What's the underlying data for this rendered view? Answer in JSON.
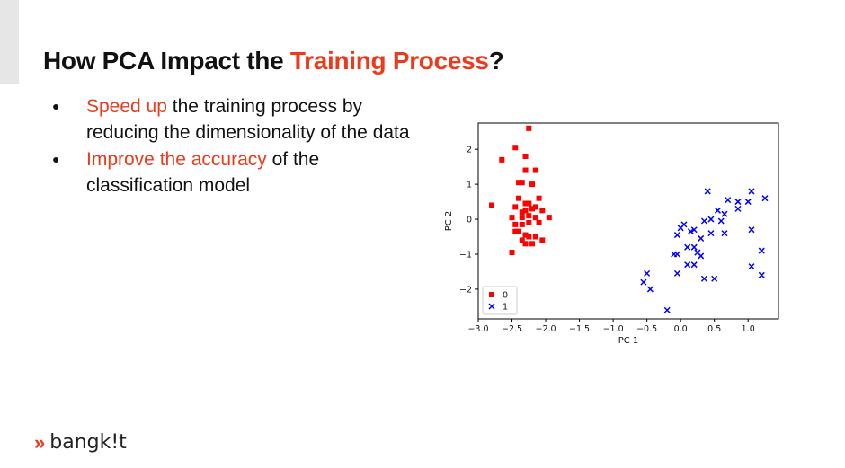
{
  "slide": {
    "title_prefix": "How PCA Impact the ",
    "title_accent": "Training Process",
    "title_suffix": "?",
    "accent_color": "#ea3b1c",
    "bullets": [
      {
        "highlight": "Speed up",
        "rest": " the training process by reducing the dimensionality of the data"
      },
      {
        "highlight": "Improve the accuracy",
        "rest": " of the classification model"
      }
    ],
    "brand": {
      "mark": "»",
      "name": "bangk!t"
    }
  },
  "chart_data": {
    "type": "scatter",
    "title": "",
    "xlabel": "PC 1",
    "ylabel": "PC 2",
    "xlim": [
      -3.0,
      1.45
    ],
    "ylim": [
      -2.85,
      2.75
    ],
    "xticks": [
      "−3.0",
      "−2.5",
      "−2.0",
      "−1.5",
      "−1.0",
      "−0.5",
      "0.0",
      "0.5",
      "1.0"
    ],
    "yticks": [
      "2",
      "1",
      "0",
      "−1",
      "−2"
    ],
    "legend": "lower-left",
    "series": [
      {
        "name": "0",
        "marker": "square",
        "color": "#ff0000",
        "points": [
          [
            -2.25,
            2.6
          ],
          [
            -2.45,
            2.05
          ],
          [
            -2.65,
            1.7
          ],
          [
            -2.3,
            1.8
          ],
          [
            -2.3,
            1.4
          ],
          [
            -2.15,
            1.4
          ],
          [
            -2.4,
            1.05
          ],
          [
            -2.35,
            1.05
          ],
          [
            -2.2,
            1.0
          ],
          [
            -2.4,
            0.6
          ],
          [
            -2.1,
            0.6
          ],
          [
            -2.3,
            0.45
          ],
          [
            -2.25,
            0.45
          ],
          [
            -2.45,
            0.35
          ],
          [
            -2.15,
            0.35
          ],
          [
            -2.8,
            0.4
          ],
          [
            -2.35,
            0.2
          ],
          [
            -2.3,
            0.25
          ],
          [
            -2.2,
            0.3
          ],
          [
            -2.05,
            0.25
          ],
          [
            -2.5,
            0.05
          ],
          [
            -2.35,
            0.05
          ],
          [
            -2.25,
            0.1
          ],
          [
            -2.15,
            0.05
          ],
          [
            -1.95,
            0.05
          ],
          [
            -2.45,
            -0.15
          ],
          [
            -2.35,
            -0.15
          ],
          [
            -2.25,
            -0.1
          ],
          [
            -2.1,
            -0.1
          ],
          [
            -2.45,
            -0.35
          ],
          [
            -2.4,
            -0.35
          ],
          [
            -2.3,
            -0.45
          ],
          [
            -2.25,
            -0.5
          ],
          [
            -2.15,
            -0.5
          ],
          [
            -2.05,
            -0.6
          ],
          [
            -2.35,
            -0.6
          ],
          [
            -2.3,
            -0.7
          ],
          [
            -2.2,
            -0.7
          ],
          [
            -2.5,
            -0.95
          ]
        ]
      },
      {
        "name": "1",
        "marker": "x",
        "color": "#0000ff",
        "points": [
          [
            0.4,
            0.8
          ],
          [
            1.05,
            0.8
          ],
          [
            0.7,
            0.55
          ],
          [
            0.85,
            0.5
          ],
          [
            1.25,
            0.6
          ],
          [
            1.0,
            0.5
          ],
          [
            0.85,
            0.3
          ],
          [
            0.55,
            0.25
          ],
          [
            0.65,
            0.15
          ],
          [
            0.45,
            0.0
          ],
          [
            0.35,
            -0.05
          ],
          [
            0.6,
            -0.05
          ],
          [
            0.05,
            -0.15
          ],
          [
            0.0,
            -0.25
          ],
          [
            0.15,
            -0.35
          ],
          [
            0.2,
            -0.3
          ],
          [
            0.45,
            -0.4
          ],
          [
            0.65,
            -0.4
          ],
          [
            0.3,
            -0.55
          ],
          [
            -0.05,
            -0.45
          ],
          [
            1.05,
            -0.3
          ],
          [
            0.1,
            -0.8
          ],
          [
            0.2,
            -0.8
          ],
          [
            0.25,
            -0.95
          ],
          [
            -0.1,
            -1.0
          ],
          [
            -0.05,
            -1.0
          ],
          [
            0.3,
            -1.05
          ],
          [
            0.1,
            -1.3
          ],
          [
            0.2,
            -1.3
          ],
          [
            1.2,
            -0.9
          ],
          [
            1.05,
            -1.35
          ],
          [
            1.2,
            -1.6
          ],
          [
            -0.05,
            -1.55
          ],
          [
            0.35,
            -1.7
          ],
          [
            0.5,
            -1.7
          ],
          [
            -0.5,
            -1.55
          ],
          [
            -0.55,
            -1.8
          ],
          [
            -0.45,
            -2.0
          ],
          [
            -0.2,
            -2.6
          ]
        ]
      }
    ]
  }
}
